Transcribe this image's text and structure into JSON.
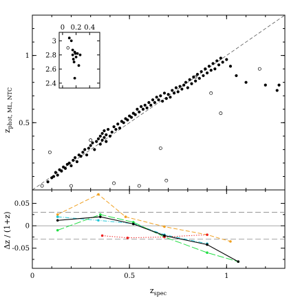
{
  "colors": {
    "axis": "#000000",
    "points": "#000000",
    "one_to_one": "#555555",
    "orange": "#f0a020",
    "cyan": "#22c6d6",
    "green": "#22dd44",
    "red": "#ee2222",
    "black_line": "#000000",
    "ref_lines": "#888888"
  },
  "chart_data": [
    {
      "type": "scatter",
      "name": "main",
      "xlabel_main": "z",
      "xlabel_sub": "spec",
      "ylabel_main": "z",
      "ylabel_sub": "phot, ML, NTC",
      "xlim": [
        0,
        1.3
      ],
      "ylim": [
        0,
        1.3
      ],
      "x_ticks": [
        0,
        0.5,
        1
      ],
      "x_tick_labels": [
        "0",
        "0.5",
        "1"
      ],
      "y_ticks": [
        0.5,
        1
      ],
      "y_tick_labels": [
        "0.5",
        "1"
      ],
      "one_to_one_line": true,
      "filled_points": [
        [
          0.08,
          0.06
        ],
        [
          0.1,
          0.09
        ],
        [
          0.11,
          0.1
        ],
        [
          0.12,
          0.13
        ],
        [
          0.13,
          0.11
        ],
        [
          0.14,
          0.15
        ],
        [
          0.15,
          0.14
        ],
        [
          0.16,
          0.17
        ],
        [
          0.17,
          0.16
        ],
        [
          0.18,
          0.19
        ],
        [
          0.19,
          0.2
        ],
        [
          0.2,
          0.18
        ],
        [
          0.21,
          0.22
        ],
        [
          0.22,
          0.24
        ],
        [
          0.23,
          0.21
        ],
        [
          0.24,
          0.26
        ],
        [
          0.25,
          0.25
        ],
        [
          0.26,
          0.28
        ],
        [
          0.27,
          0.3
        ],
        [
          0.28,
          0.26
        ],
        [
          0.29,
          0.31
        ],
        [
          0.3,
          0.33
        ],
        [
          0.31,
          0.35
        ],
        [
          0.32,
          0.3
        ],
        [
          0.33,
          0.36
        ],
        [
          0.34,
          0.38
        ],
        [
          0.35,
          0.4
        ],
        [
          0.35,
          0.34
        ],
        [
          0.36,
          0.42
        ],
        [
          0.36,
          0.37
        ],
        [
          0.37,
          0.39
        ],
        [
          0.37,
          0.44
        ],
        [
          0.38,
          0.36
        ],
        [
          0.38,
          0.41
        ],
        [
          0.39,
          0.45
        ],
        [
          0.4,
          0.4
        ],
        [
          0.41,
          0.43
        ],
        [
          0.42,
          0.47
        ],
        [
          0.43,
          0.45
        ],
        [
          0.44,
          0.49
        ],
        [
          0.45,
          0.46
        ],
        [
          0.46,
          0.51
        ],
        [
          0.47,
          0.5
        ],
        [
          0.48,
          0.53
        ],
        [
          0.49,
          0.52
        ],
        [
          0.5,
          0.55
        ],
        [
          0.51,
          0.54
        ],
        [
          0.52,
          0.57
        ],
        [
          0.53,
          0.56
        ],
        [
          0.54,
          0.6
        ],
        [
          0.55,
          0.58
        ],
        [
          0.56,
          0.62
        ],
        [
          0.57,
          0.6
        ],
        [
          0.58,
          0.63
        ],
        [
          0.59,
          0.61
        ],
        [
          0.6,
          0.65
        ],
        [
          0.61,
          0.63
        ],
        [
          0.62,
          0.67
        ],
        [
          0.63,
          0.65
        ],
        [
          0.64,
          0.69
        ],
        [
          0.65,
          0.67
        ],
        [
          0.66,
          0.7
        ],
        [
          0.67,
          0.66
        ],
        [
          0.68,
          0.72
        ],
        [
          0.69,
          0.68
        ],
        [
          0.7,
          0.71
        ],
        [
          0.71,
          0.69
        ],
        [
          0.72,
          0.74
        ],
        [
          0.73,
          0.72
        ],
        [
          0.74,
          0.76
        ],
        [
          0.75,
          0.73
        ],
        [
          0.76,
          0.77
        ],
        [
          0.77,
          0.75
        ],
        [
          0.78,
          0.78
        ],
        [
          0.79,
          0.8
        ],
        [
          0.8,
          0.76
        ],
        [
          0.81,
          0.82
        ],
        [
          0.82,
          0.79
        ],
        [
          0.83,
          0.84
        ],
        [
          0.84,
          0.81
        ],
        [
          0.85,
          0.86
        ],
        [
          0.86,
          0.83
        ],
        [
          0.87,
          0.88
        ],
        [
          0.88,
          0.85
        ],
        [
          0.89,
          0.9
        ],
        [
          0.9,
          0.87
        ],
        [
          0.91,
          0.92
        ],
        [
          0.92,
          0.89
        ],
        [
          0.93,
          0.94
        ],
        [
          0.94,
          0.9
        ],
        [
          0.95,
          0.96
        ],
        [
          0.96,
          0.93
        ],
        [
          0.97,
          0.98
        ],
        [
          0.98,
          0.95
        ],
        [
          1.0,
          0.97
        ],
        [
          1.02,
          0.92
        ],
        [
          1.05,
          0.85
        ],
        [
          1.1,
          0.8
        ],
        [
          1.2,
          0.78
        ],
        [
          1.26,
          0.74
        ],
        [
          1.27,
          0.78
        ]
      ],
      "open_points": [
        [
          0.05,
          0.03
        ],
        [
          0.09,
          0.28
        ],
        [
          0.2,
          0.03
        ],
        [
          0.3,
          0.37
        ],
        [
          0.42,
          0.05
        ],
        [
          0.55,
          0.03
        ],
        [
          0.66,
          0.31
        ],
        [
          0.69,
          0.07
        ],
        [
          0.84,
          0.84
        ],
        [
          0.92,
          0.72
        ],
        [
          0.97,
          0.57
        ],
        [
          1.17,
          0.9
        ]
      ]
    },
    {
      "type": "scatter",
      "name": "inset",
      "x_ticks": [
        0,
        0.2,
        0.4
      ],
      "x_tick_labels": [
        "0",
        "0.2",
        "0.4"
      ],
      "y_ticks": [
        2.4,
        2.6,
        2.8,
        3
      ],
      "y_tick_labels": [
        "2.4",
        "2.6",
        "2.8",
        "3"
      ],
      "xlim": [
        -0.05,
        0.55
      ],
      "ylim": [
        2.33,
        3.12
      ],
      "filled_points": [
        [
          0.1,
          3.04
        ],
        [
          0.13,
          3.0
        ],
        [
          0.15,
          2.87
        ],
        [
          0.15,
          2.8
        ],
        [
          0.16,
          2.74
        ],
        [
          0.17,
          2.7
        ],
        [
          0.18,
          2.84
        ],
        [
          0.19,
          2.82
        ],
        [
          0.2,
          2.77
        ],
        [
          0.22,
          2.82
        ],
        [
          0.24,
          2.65
        ],
        [
          0.26,
          2.8
        ],
        [
          0.18,
          2.47
        ]
      ],
      "open_points": [
        [
          0.08,
          2.9
        ]
      ]
    },
    {
      "type": "line",
      "name": "residuals",
      "ylabel": "Δz / (1+z)",
      "xlim": [
        0,
        1.3
      ],
      "ylim": [
        -0.095,
        0.08
      ],
      "x_ticks": [
        0,
        0.5,
        1
      ],
      "y_ticks": [
        -0.05,
        0,
        0.05
      ],
      "y_tick_labels": [
        "-0.05",
        "0",
        "0.05"
      ],
      "ref_lines": [
        0.03,
        0,
        -0.03
      ],
      "series": [
        {
          "color_key": "orange",
          "dash": "dashed",
          "x": [
            0.13,
            0.34,
            0.48,
            0.68,
            0.9,
            1.02
          ],
          "y": [
            0.025,
            0.07,
            0.02,
            -0.002,
            -0.02,
            -0.035
          ]
        },
        {
          "color_key": "cyan",
          "dash": "dashdot",
          "x": [
            0.13,
            0.34,
            0.52,
            0.68,
            0.9
          ],
          "y": [
            0.02,
            0.012,
            0.005,
            -0.02,
            -0.04
          ]
        },
        {
          "color_key": "green",
          "dash": "longdash",
          "x": [
            0.13,
            0.35,
            0.52,
            0.68,
            0.9,
            1.06
          ],
          "y": [
            -0.01,
            0.025,
            0.008,
            -0.025,
            -0.06,
            -0.08
          ]
        },
        {
          "color_key": "red",
          "dash": "dotted",
          "x": [
            0.36,
            0.49,
            0.68,
            0.9
          ],
          "y": [
            -0.022,
            -0.027,
            -0.025,
            -0.02
          ]
        },
        {
          "color_key": "black_line",
          "dash": "solid",
          "x": [
            0.13,
            0.35,
            0.52,
            0.68,
            0.9,
            1.06
          ],
          "y": [
            0.012,
            0.02,
            0.004,
            -0.022,
            -0.042,
            -0.08
          ]
        }
      ]
    }
  ]
}
